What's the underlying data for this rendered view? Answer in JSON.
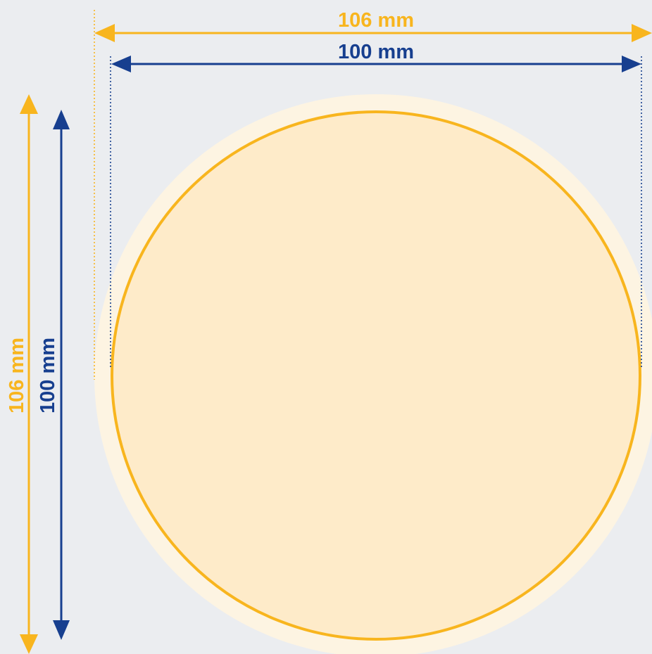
{
  "dimensions": {
    "outer": {
      "width_label": "106 mm",
      "height_label": "106 mm"
    },
    "inner": {
      "width_label": "100 mm",
      "height_label": "100 mm"
    }
  },
  "colors": {
    "background": "#ebedf0",
    "outer": "#f8b51e",
    "inner": "#173f8f",
    "bleed_fill": "#fdf4e2",
    "shape_fill": "#feebc9"
  }
}
